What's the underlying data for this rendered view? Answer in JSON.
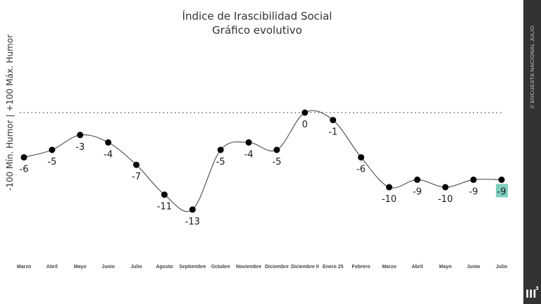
{
  "sidebar": {
    "survey_label": "// ENCUESTA NACIONAL JULIO",
    "logo": {
      "main": "lll",
      "sup": "3"
    }
  },
  "chart_data": {
    "type": "line",
    "title": "Índice de Irascibilidad Social",
    "subtitle": "Gráfico evolutivo",
    "ylabel": "-100 Mín. Humor | +100 Máx. Humor",
    "xlabel": "",
    "ylim": [
      -15,
      0
    ],
    "reference_line": 0,
    "categories": [
      "Marzo",
      "Abril",
      "Mayo",
      "Junio",
      "Julio",
      "Agosto",
      "Septiembre",
      "Octubre",
      "Noviembre",
      "Diciembre",
      "Diciembre II",
      "Enero 25",
      "Febrero",
      "Marzo",
      "Abril",
      "Mayo",
      "Junio",
      "Julio"
    ],
    "values": [
      -6,
      -5,
      -3,
      -4,
      -7,
      -11,
      -13,
      -5,
      -4,
      -5,
      0,
      -1,
      -6,
      -10,
      -9,
      -10,
      -9,
      -9
    ],
    "highlight_last": true,
    "colors": {
      "line": "#555555",
      "marker": "#000000",
      "highlight": "#7fcfbf",
      "sidebar": "#333333"
    }
  }
}
